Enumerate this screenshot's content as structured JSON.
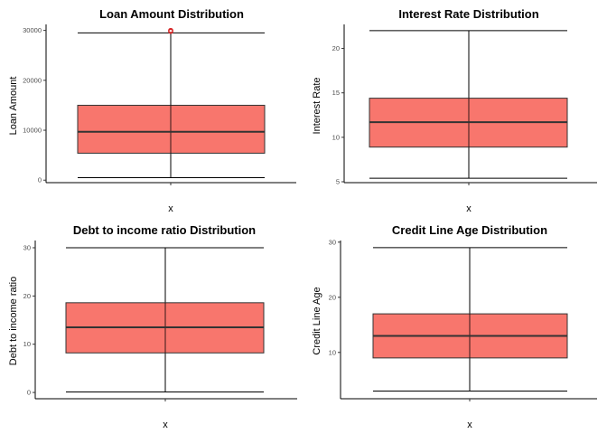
{
  "chart_data": [
    {
      "type": "boxplot",
      "title": "Loan Amount Distribution",
      "xlabel": "x",
      "ylabel": "Loan Amount",
      "box": {
        "min": 500,
        "q1": 5400,
        "median": 9700,
        "q3": 15000,
        "max": 29500
      },
      "outliers": [
        29800,
        29900,
        30000
      ],
      "ylim": [
        -500,
        31200
      ],
      "yticks": [
        0,
        10000,
        20000,
        30000
      ],
      "ytick_labels": [
        "0",
        "10000",
        "20000",
        "30000"
      ],
      "fill_color": "#f8766d"
    },
    {
      "type": "boxplot",
      "title": "Interest Rate Distribution",
      "xlabel": "x",
      "ylabel": "Interest Rate",
      "box": {
        "min": 5.4,
        "q1": 8.9,
        "median": 11.7,
        "q3": 14.4,
        "max": 22
      },
      "outliers": [],
      "ylim": [
        4.9,
        22.7
      ],
      "yticks": [
        5,
        10,
        15,
        20
      ],
      "ytick_labels": [
        "5",
        "10",
        "15",
        "20"
      ],
      "fill_color": "#f8766d"
    },
    {
      "type": "boxplot",
      "title": "Debt to income ratio Distribution",
      "xlabel": "x",
      "ylabel": "Debt to income ratio",
      "box": {
        "min": 0.1,
        "q1": 8.2,
        "median": 13.5,
        "q3": 18.6,
        "max": 30
      },
      "outliers": [],
      "ylim": [
        -1.3,
        31.5
      ],
      "yticks": [
        0,
        10,
        20,
        30
      ],
      "ytick_labels": [
        "0",
        "10",
        "20",
        "30"
      ],
      "fill_color": "#f8766d"
    },
    {
      "type": "boxplot",
      "title": "Credit Line Age Distribution",
      "xlabel": "x",
      "ylabel": "Credit Line Age",
      "box": {
        "min": 3,
        "q1": 9,
        "median": 13,
        "q3": 17,
        "max": 29
      },
      "outliers": [],
      "ylim": [
        1.6,
        30.3
      ],
      "yticks": [
        10,
        20,
        30
      ],
      "ytick_labels": [
        "10",
        "20",
        "30"
      ],
      "fill_color": "#f8766d"
    }
  ]
}
